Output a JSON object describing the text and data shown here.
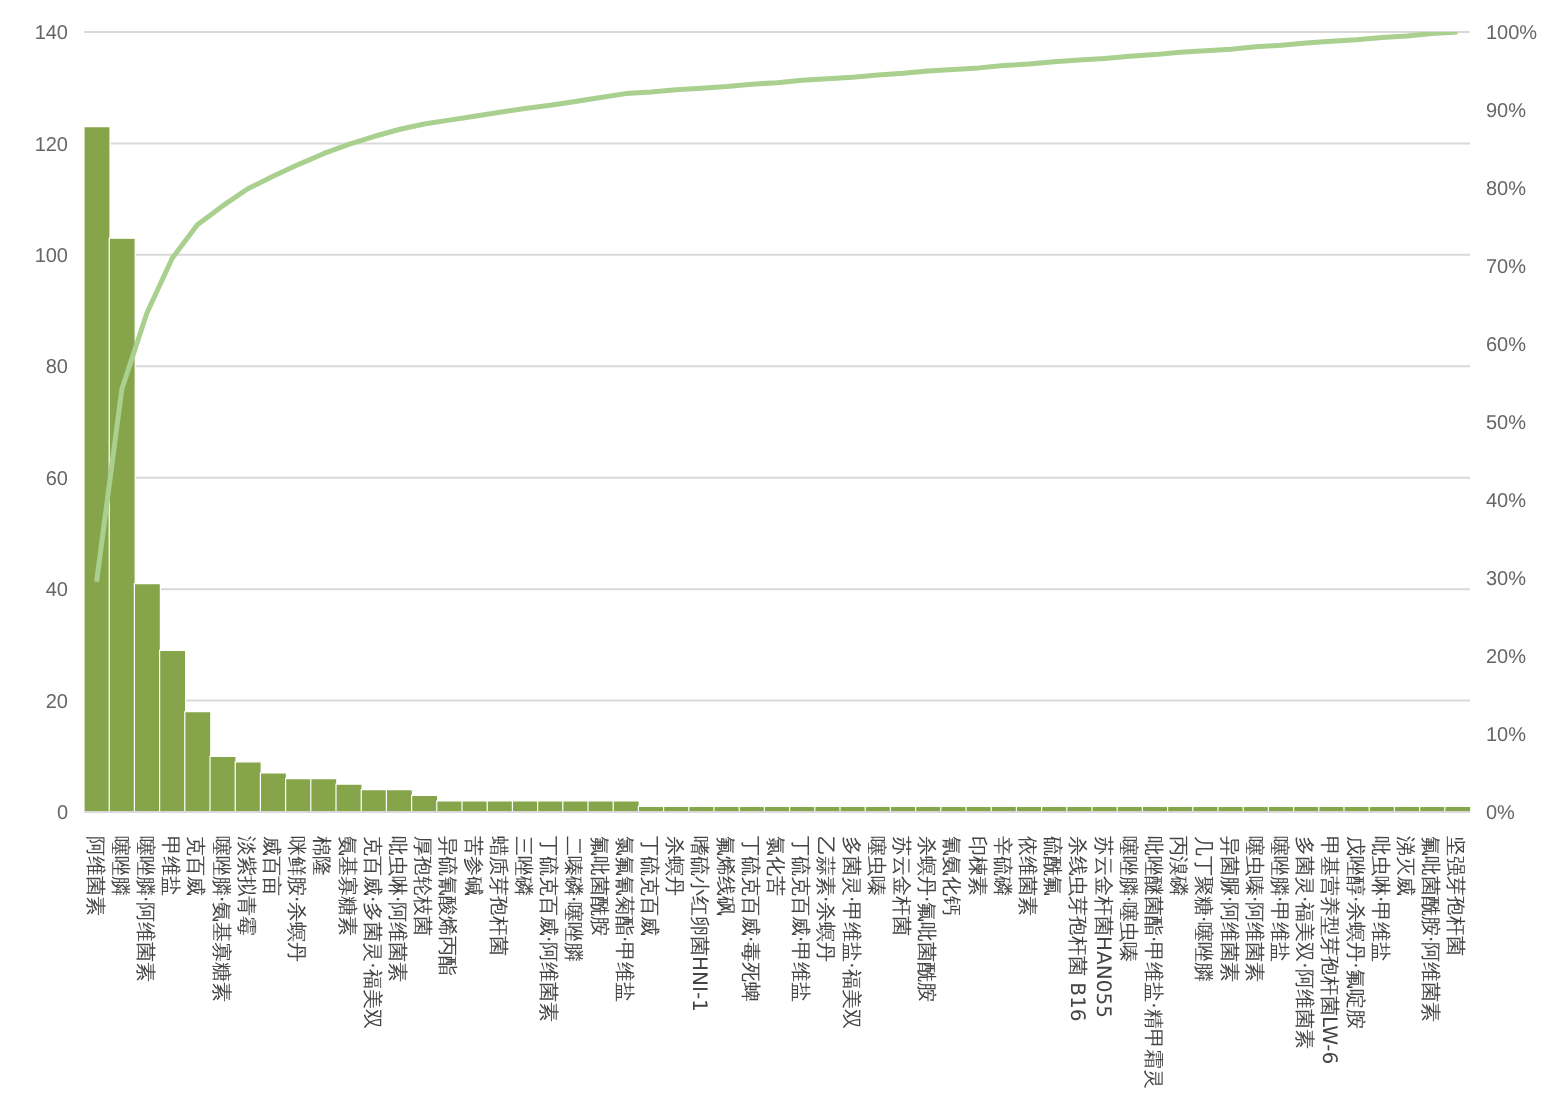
{
  "chart_data": {
    "type": "bar",
    "categories": [
      "阿维菌素",
      "噻唑膦",
      "噻唑膦·阿维菌素",
      "甲维盐",
      "克百威",
      "噻唑膦·氨基寡糖素",
      "淡紫拟青霉",
      "威百亩",
      "咪鲜胺·杀螟丹",
      "棉隆",
      "氨基寡糖素",
      "克百威·多菌灵·福美双",
      "吡虫啉·阿维菌素",
      "厚孢轮枝菌",
      "异硫氰酸烯丙酯",
      "苦参碱",
      "蜡质芽孢杆菌",
      "三唑磷",
      "丁硫克百威·阿维菌素",
      "二嗪磷·噻唑膦",
      "氟吡菌酰胺",
      "氯氟氰菊酯·甲维盐",
      "丁硫克百威",
      "杀螟丹",
      "嗜硫小红卵菌HNI-1",
      "氟烯线砜",
      "丁硫克百威·毒死蜱",
      "氯化苦",
      "丁硫克百威·甲维盐",
      "乙蒜素·杀螟丹",
      "多菌灵·甲维盐·福美双",
      "噻虫嗪",
      "苏云金杆菌",
      "杀螟丹·氟吡菌酰胺",
      "氰氨化钙",
      "印楝素",
      "辛硫磷",
      "依维菌素",
      "硫酰氟",
      "杀线虫芽孢杆菌 B16",
      "苏云金杆菌HAN055",
      "噻唑膦·噻虫嗪",
      "吡唑醚菌酯·甲维盐·精甲霜灵",
      "丙溴磷",
      "几丁聚糖·噻唑膦",
      "异菌脲·阿维菌素",
      "噻虫嗪·阿维菌素",
      "噻唑膦·甲维盐",
      "多菌灵·福美双·阿维菌素",
      "甲基营养型芽孢杆菌LW-6",
      "戊唑醇·杀螟丹·氟啶胺",
      "吡虫啉·甲维盐",
      "涕灭威",
      "氟吡菌酰胺·阿维菌素",
      "坚强芽孢杆菌"
    ],
    "series": [
      {
        "color": "#86a44a",
        "values": [
          123,
          103,
          41,
          29,
          18,
          10,
          9,
          7,
          6,
          6,
          5,
          4,
          4,
          3,
          2,
          2,
          2,
          2,
          2,
          2,
          2,
          2,
          1,
          1,
          1,
          1,
          1,
          1,
          1,
          1,
          1,
          1,
          1,
          1,
          1,
          1,
          1,
          1,
          1,
          1,
          1,
          1,
          1,
          1,
          1,
          1,
          1,
          1,
          1,
          1,
          1,
          1,
          1,
          1,
          1
        ]
      },
      {
        "type": "line",
        "axis": "y2",
        "color": "#a9d08e",
        "values": [
          29.5,
          54.2,
          64.0,
          71.0,
          75.3,
          77.7,
          79.9,
          81.5,
          83.0,
          84.4,
          85.6,
          86.6,
          87.5,
          88.2,
          88.7,
          89.2,
          89.7,
          90.2,
          90.6,
          91.1,
          91.6,
          92.1,
          92.3,
          92.6,
          92.8,
          93.0,
          93.3,
          93.5,
          93.8,
          94.0,
          94.2,
          94.5,
          94.7,
          95.0,
          95.2,
          95.4,
          95.7,
          95.9,
          96.2,
          96.4,
          96.6,
          96.9,
          97.1,
          97.4,
          97.6,
          97.8,
          98.1,
          98.3,
          98.6,
          98.8,
          99.0,
          99.3,
          99.5,
          99.8,
          100
        ]
      }
    ],
    "ylim": [
      0,
      140
    ],
    "yticks": [
      0,
      20,
      40,
      60,
      80,
      100,
      120,
      140
    ],
    "y2lim": [
      0,
      100
    ],
    "y2ticks": [
      {
        "value": 0,
        "label": "0%"
      },
      {
        "value": 10,
        "label": "10%"
      },
      {
        "value": 20,
        "label": "20%"
      },
      {
        "value": 30,
        "label": "30%"
      },
      {
        "value": 40,
        "label": "40%"
      },
      {
        "value": 50,
        "label": "50%"
      },
      {
        "value": 60,
        "label": "60%"
      },
      {
        "value": 70,
        "label": "70%"
      },
      {
        "value": 80,
        "label": "80%"
      },
      {
        "value": 90,
        "label": "90%"
      },
      {
        "value": 100,
        "label": "100%"
      }
    ],
    "grid": "y",
    "legend": false,
    "marker": "none",
    "line_style": "solid"
  }
}
